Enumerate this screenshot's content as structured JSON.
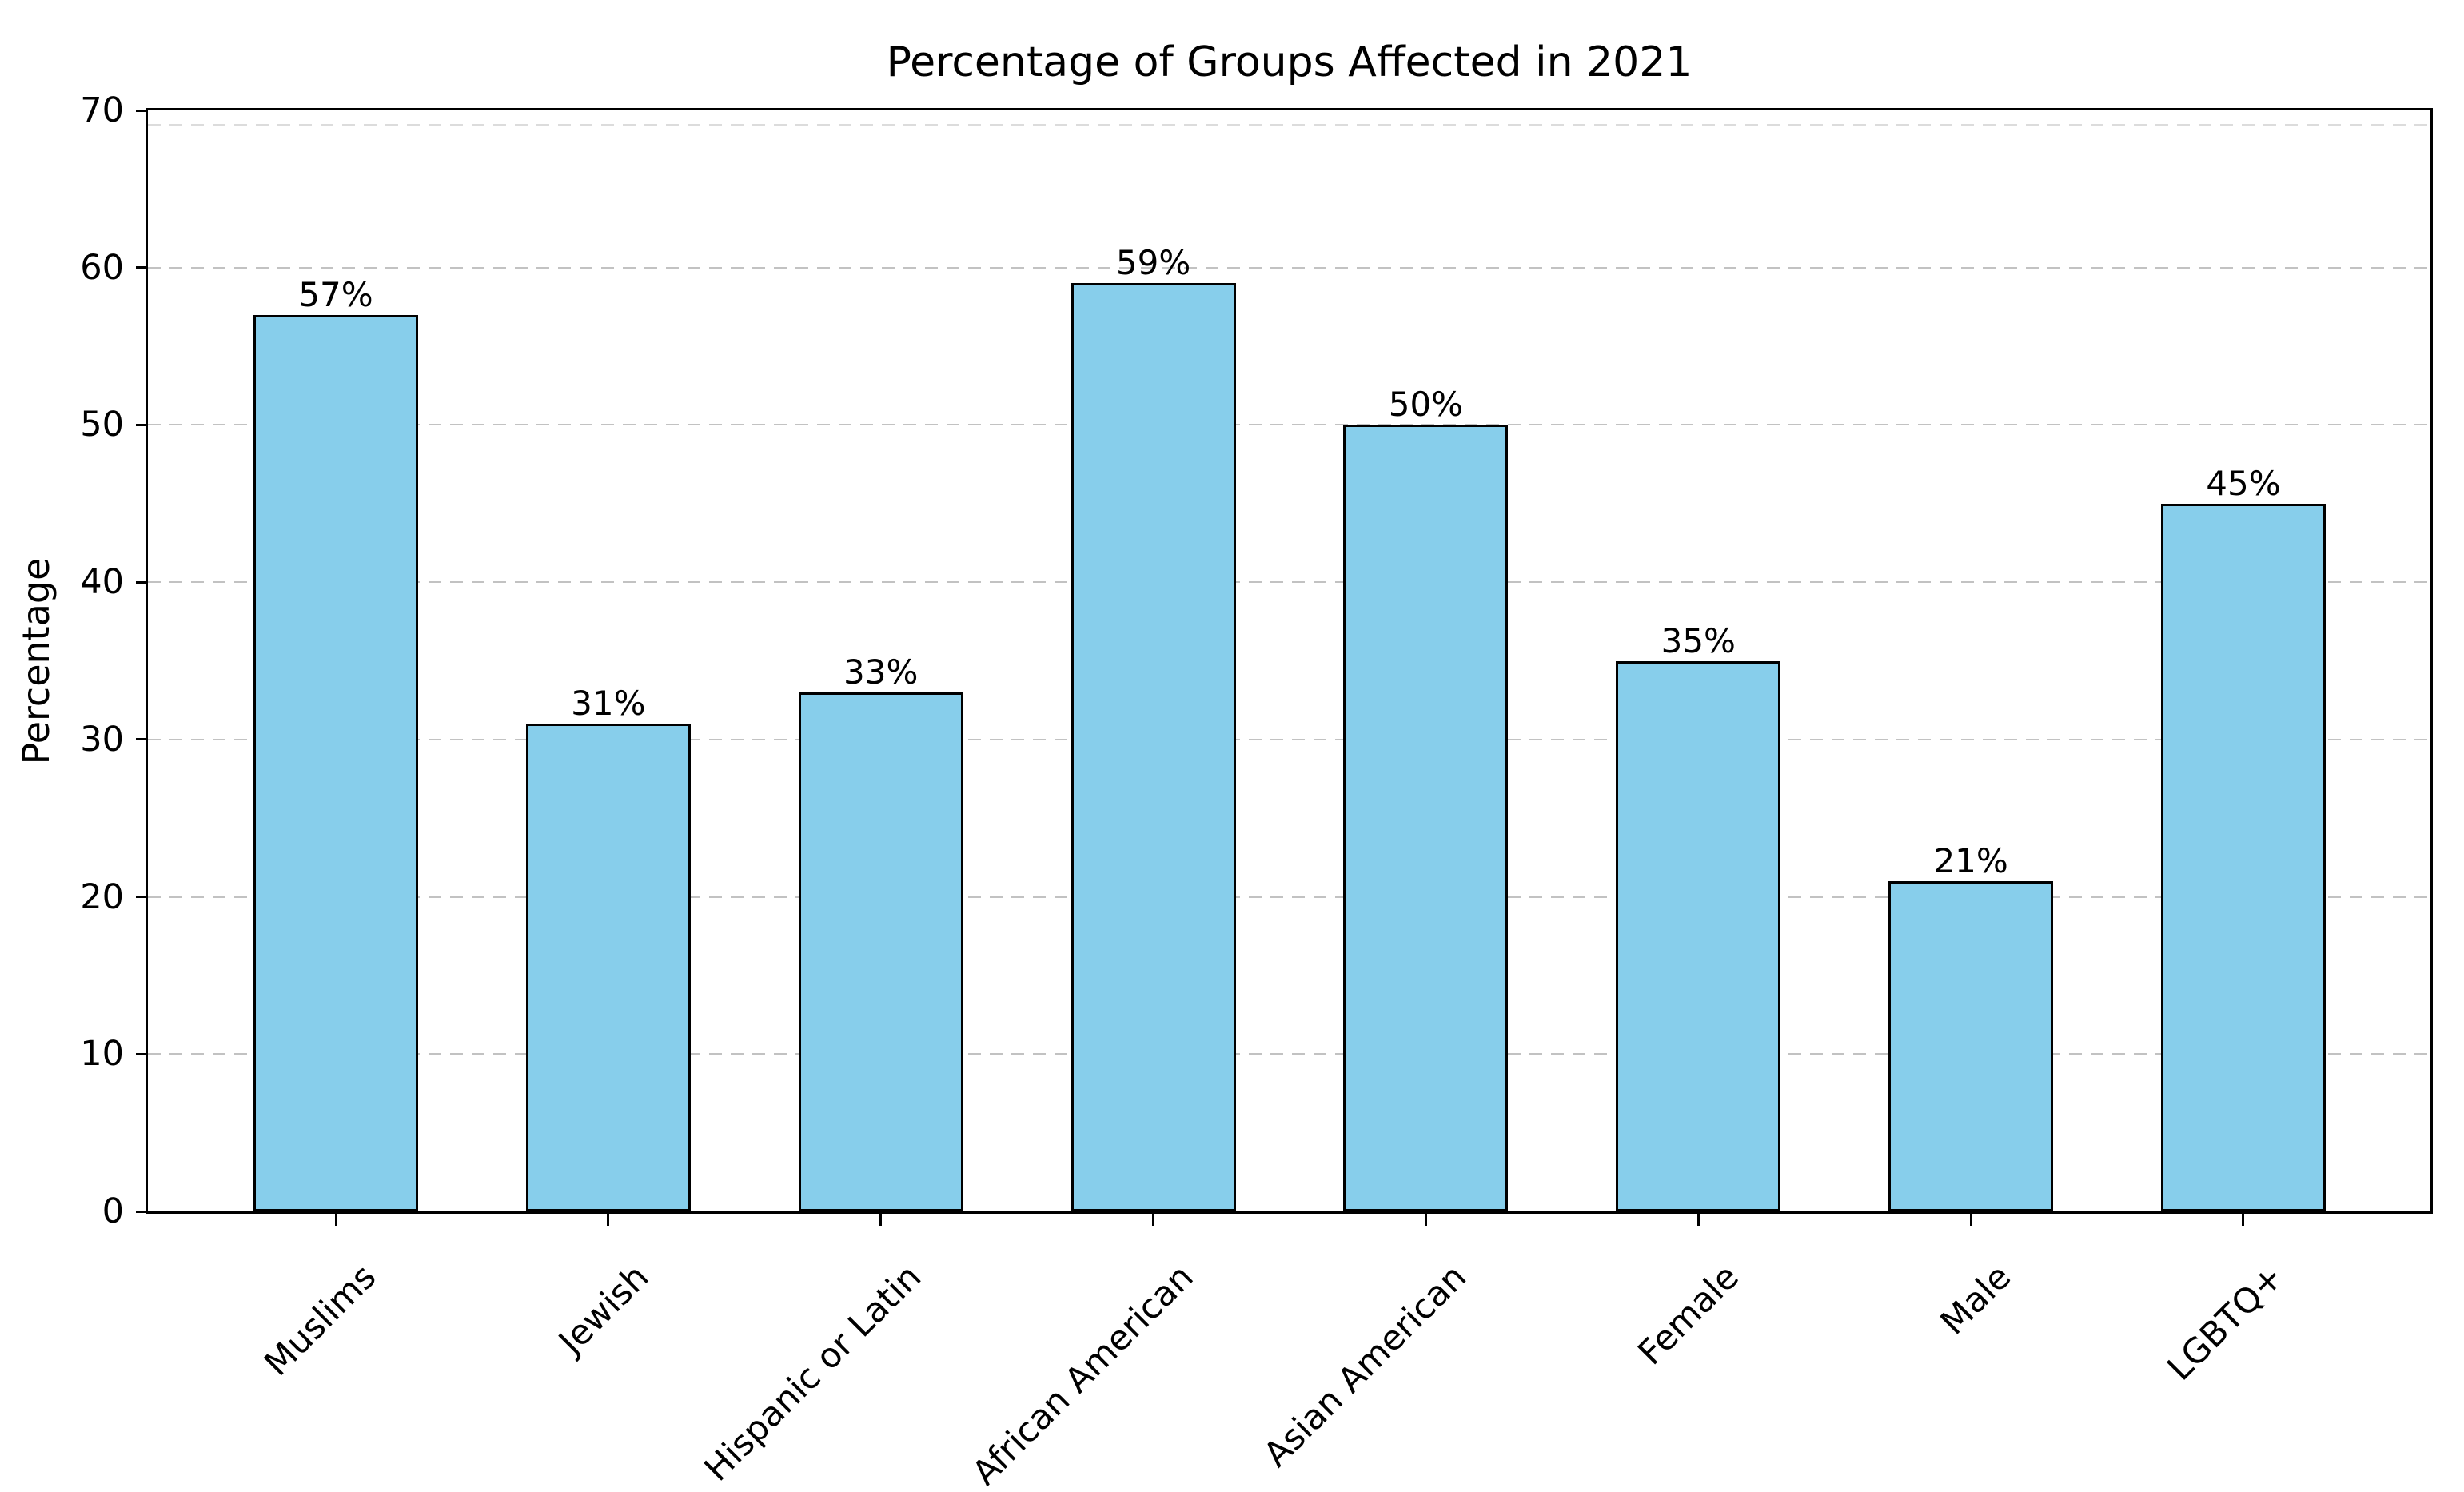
{
  "chart_data": {
    "type": "bar",
    "title": "Percentage of Groups Affected in 2021",
    "ylabel": "Percentage",
    "xlabel": "",
    "categories": [
      "Muslims",
      "Jewish",
      "Hispanic or Latin",
      "African American",
      "Asian American",
      "Female",
      "Male",
      "LGBTQ+"
    ],
    "values": [
      57,
      31,
      33,
      59,
      50,
      35,
      21,
      45
    ],
    "value_labels": [
      "57%",
      "31%",
      "33%",
      "59%",
      "50%",
      "35%",
      "21%",
      "45%"
    ],
    "yticks": [
      0,
      10,
      20,
      30,
      40,
      50,
      60,
      70
    ],
    "ylim": [
      0,
      70
    ],
    "grid": {
      "axis": "y",
      "style": "dashed",
      "on": true
    },
    "legend": null,
    "colors": {
      "bar_fill": "#87CEEB",
      "bar_edge": "#000000",
      "gridline": "#c2c2c2",
      "gridline_faint": "#dcdcdc",
      "axis": "#000000",
      "text": "#000000",
      "background": "#ffffff"
    }
  }
}
